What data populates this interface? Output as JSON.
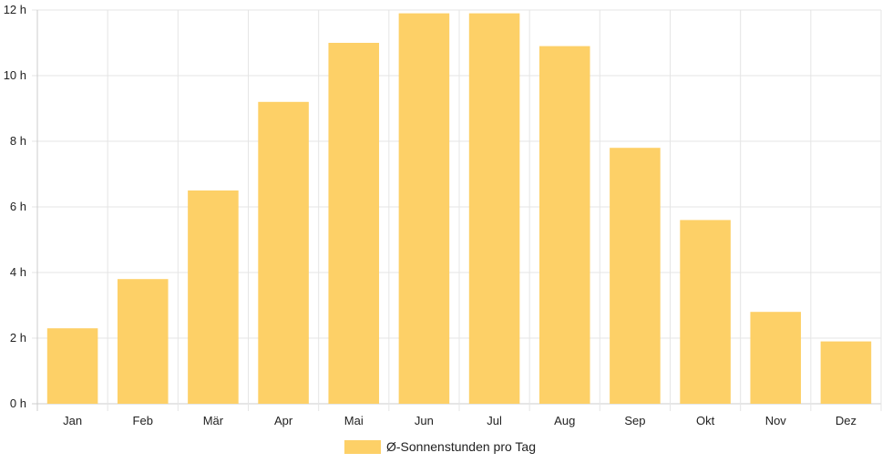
{
  "chart_data": {
    "type": "bar",
    "categories": [
      "Jan",
      "Feb",
      "Mär",
      "Apr",
      "Mai",
      "Jun",
      "Jul",
      "Aug",
      "Sep",
      "Okt",
      "Nov",
      "Dez"
    ],
    "series": [
      {
        "name": "Ø-Sonnenstunden pro Tag",
        "values": [
          2.3,
          3.8,
          6.5,
          9.2,
          11.0,
          11.9,
          11.9,
          10.9,
          7.8,
          5.6,
          2.8,
          1.9
        ]
      }
    ],
    "ylim": [
      0,
      12
    ],
    "yticks": [
      "0 h",
      "2 h",
      "4 h",
      "6 h",
      "8 h",
      "10 h",
      "12 h"
    ],
    "grid": true,
    "legend_position": "bottom",
    "colors": {
      "bar": "#fdd067",
      "grid": "#e5e5e5",
      "axis": "#cccccc"
    }
  }
}
